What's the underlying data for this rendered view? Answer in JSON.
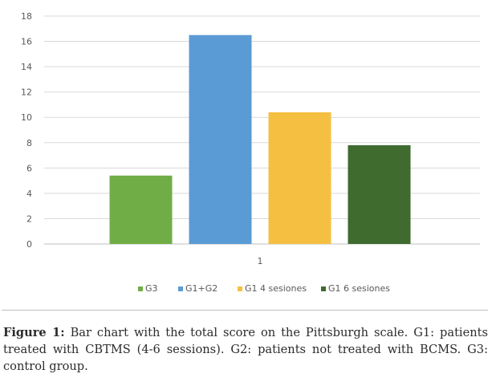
{
  "chart_data": {
    "type": "bar",
    "categories": [
      "1"
    ],
    "series": [
      {
        "name": "G3",
        "values": [
          5.4
        ],
        "color": "#70ad47"
      },
      {
        "name": "G1+G2",
        "values": [
          16.5
        ],
        "color": "#5b9bd5"
      },
      {
        "name": "G1 4 sesiones",
        "values": [
          10.4
        ],
        "color": "#f5bf42"
      },
      {
        "name": "G1 6 sesiones",
        "values": [
          7.8
        ],
        "color": "#3f6b2e"
      }
    ],
    "ylim": [
      0,
      18
    ],
    "yticks": [
      0,
      2,
      4,
      6,
      8,
      10,
      12,
      14,
      16,
      18
    ],
    "grid": true,
    "legend": "bottom"
  },
  "caption": {
    "label": "Figure 1:",
    "text": "Bar chart with the total score on the Pittsburgh scale. G1: patients treated with CBTMS (4-6 sessions). G2: patients not treated with BCMS. G3: control group."
  }
}
